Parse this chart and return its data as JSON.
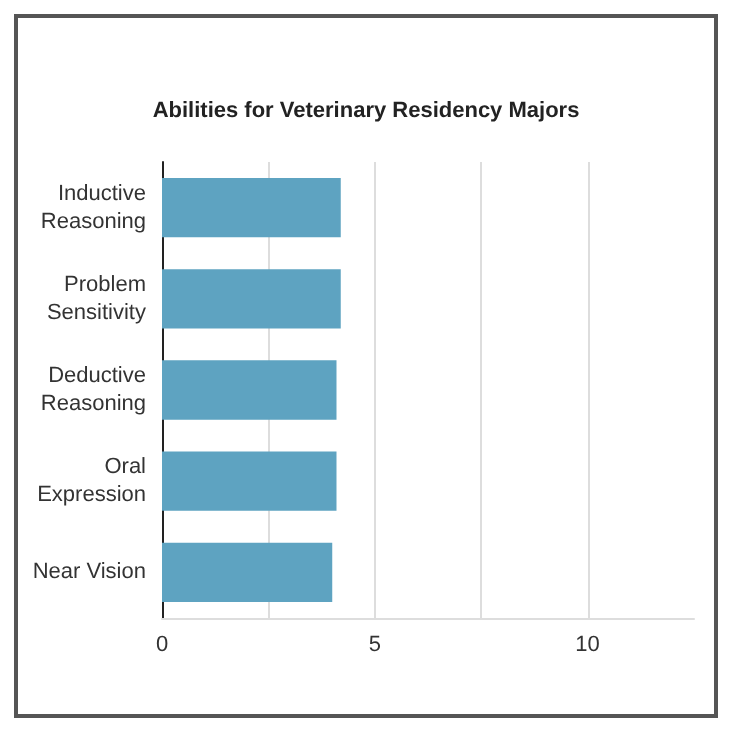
{
  "chart_data": {
    "type": "bar",
    "orientation": "horizontal",
    "title": "Abilities for Veterinary Residency Majors",
    "categories": [
      "Inductive\nReasoning",
      "Problem\nSensitivity",
      "Deductive\nReasoning",
      "Oral\nExpression",
      "Near Vision"
    ],
    "values": [
      4.2,
      4.2,
      4.1,
      4.1,
      4.0
    ],
    "color": "#5ea3c1",
    "xlim": [
      0,
      12.5
    ],
    "xticks": [
      0,
      {
        "value": 2.5,
        "label": null
      },
      5,
      {
        "value": 7.5,
        "label": null
      },
      10
    ],
    "grid": "x"
  }
}
